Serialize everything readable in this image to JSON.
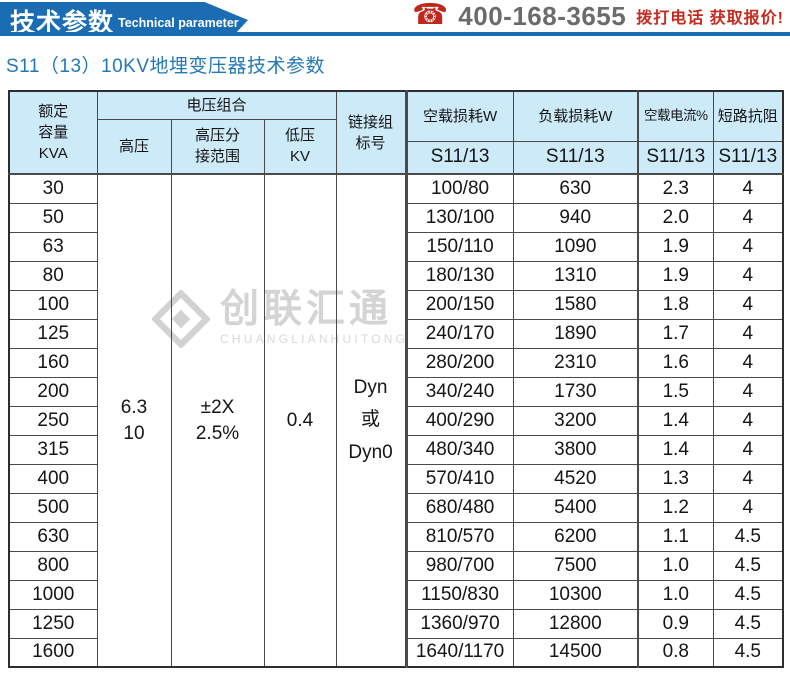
{
  "header": {
    "ribbon_title": "技术参数",
    "ribbon_subtitle": "Technical parameter",
    "phone_number": "400-168-3655",
    "phone_cta": "拨打电话 获取报价!",
    "colors": {
      "ribbon_blue": "#1a6cb3",
      "cta_red": "#c52a1e",
      "phone_gray": "#6b6b6b"
    }
  },
  "title": "S11（13）10KV地埋变压器技术参数",
  "watermark": {
    "name": "创联汇通",
    "sub": "CHUANGLIANHUITONG"
  },
  "table": {
    "colors": {
      "header_bg": "#cdeaf9",
      "border": "#4a4a4a"
    },
    "header": {
      "capacity": "额定\n容量\nKVA",
      "voltage_group": "电压组合",
      "hv": "高压",
      "hv_tap": "高压分\n接范围",
      "lv": "低压\nKV",
      "vector_group": "链接组\n标号",
      "no_load_loss": "空载损耗W",
      "load_loss": "负载损耗W",
      "no_load_current": "空载电流%",
      "impedance": "短路抗阻",
      "model_label": "S11/13"
    },
    "merged": {
      "hv": "6.3\n10",
      "tap": "±2X\n2.5%",
      "lv": "0.4",
      "vector": "Dyn\n或\nDyn0"
    },
    "rows": [
      {
        "kva": "30",
        "no_load_loss": "100/80",
        "load_loss": "630",
        "no_load_current": "2.3",
        "impedance": "4"
      },
      {
        "kva": "50",
        "no_load_loss": "130/100",
        "load_loss": "940",
        "no_load_current": "2.0",
        "impedance": "4"
      },
      {
        "kva": "63",
        "no_load_loss": "150/110",
        "load_loss": "1090",
        "no_load_current": "1.9",
        "impedance": "4"
      },
      {
        "kva": "80",
        "no_load_loss": "180/130",
        "load_loss": "1310",
        "no_load_current": "1.9",
        "impedance": "4"
      },
      {
        "kva": "100",
        "no_load_loss": "200/150",
        "load_loss": "1580",
        "no_load_current": "1.8",
        "impedance": "4"
      },
      {
        "kva": "125",
        "no_load_loss": "240/170",
        "load_loss": "1890",
        "no_load_current": "1.7",
        "impedance": "4"
      },
      {
        "kva": "160",
        "no_load_loss": "280/200",
        "load_loss": "2310",
        "no_load_current": "1.6",
        "impedance": "4"
      },
      {
        "kva": "200",
        "no_load_loss": "340/240",
        "load_loss": "1730",
        "no_load_current": "1.5",
        "impedance": "4"
      },
      {
        "kva": "250",
        "no_load_loss": "400/290",
        "load_loss": "3200",
        "no_load_current": "1.4",
        "impedance": "4"
      },
      {
        "kva": "315",
        "no_load_loss": "480/340",
        "load_loss": "3800",
        "no_load_current": "1.4",
        "impedance": "4"
      },
      {
        "kva": "400",
        "no_load_loss": "570/410",
        "load_loss": "4520",
        "no_load_current": "1.3",
        "impedance": "4"
      },
      {
        "kva": "500",
        "no_load_loss": "680/480",
        "load_loss": "5400",
        "no_load_current": "1.2",
        "impedance": "4"
      },
      {
        "kva": "630",
        "no_load_loss": "810/570",
        "load_loss": "6200",
        "no_load_current": "1.1",
        "impedance": "4.5"
      },
      {
        "kva": "800",
        "no_load_loss": "980/700",
        "load_loss": "7500",
        "no_load_current": "1.0",
        "impedance": "4.5"
      },
      {
        "kva": "1000",
        "no_load_loss": "1150/830",
        "load_loss": "10300",
        "no_load_current": "1.0",
        "impedance": "4.5"
      },
      {
        "kva": "1250",
        "no_load_loss": "1360/970",
        "load_loss": "12800",
        "no_load_current": "0.9",
        "impedance": "4.5"
      },
      {
        "kva": "1600",
        "no_load_loss": "1640/1170",
        "load_loss": "14500",
        "no_load_current": "0.8",
        "impedance": "4.5"
      }
    ]
  }
}
